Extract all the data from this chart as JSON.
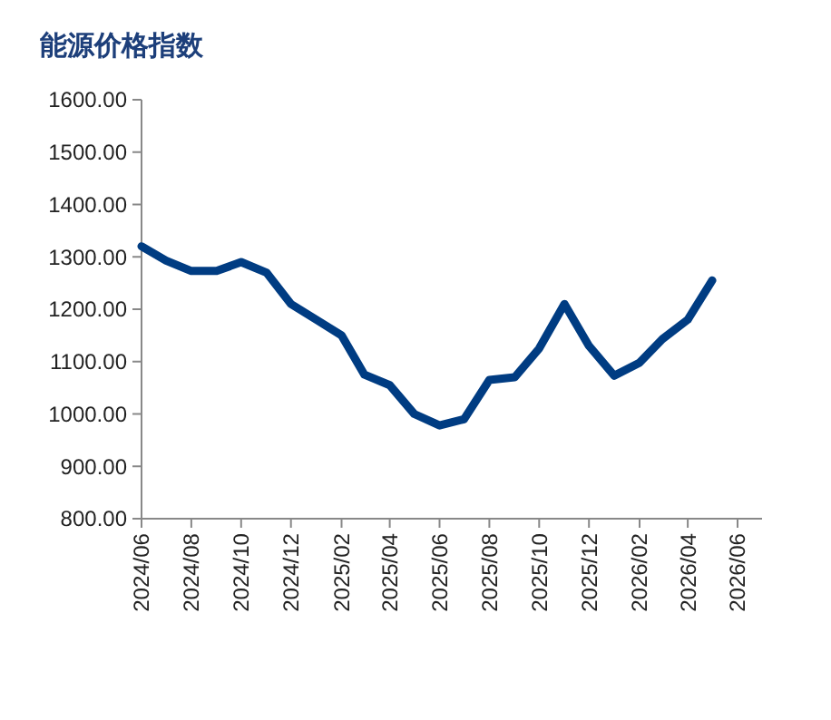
{
  "chart_data": {
    "type": "line",
    "title": "能源价格指数",
    "x": [
      "2024-06",
      "2024-07",
      "2024-08",
      "2024-09",
      "2024-10",
      "2024-11",
      "2024-12",
      "2025-01",
      "2025-02",
      "2025-03",
      "2025-04",
      "2025-05",
      "2025-06",
      "2025-07",
      "2025-08",
      "2025-09",
      "2025-10",
      "2025-11",
      "2025-12",
      "2026-01",
      "2026-02",
      "2026-03",
      "2026-04",
      "2026-05"
    ],
    "series": [
      {
        "color": "#003c82",
        "values": [
          1320,
          1293,
          1273,
          1273,
          1290,
          1270,
          1210,
          1180,
          1150,
          1075,
          1055,
          1000,
          978,
          990,
          1065,
          1070,
          1125,
          1210,
          1130,
          1073,
          1098,
          1143,
          1180,
          1255
        ]
      }
    ],
    "xlim": [
      "2024-06",
      "2026-07"
    ],
    "xticks": [
      {
        "value": "2024-06",
        "label": "2024/06"
      },
      {
        "value": "2024-08",
        "label": "2024/08"
      },
      {
        "value": "2024-10",
        "label": "2024/10"
      },
      {
        "value": "2024-12",
        "label": "2024/12"
      },
      {
        "value": "2025-02",
        "label": "2025/02"
      },
      {
        "value": "2025-04",
        "label": "2025/04"
      },
      {
        "value": "2025-06",
        "label": "2025/06"
      },
      {
        "value": "2025-08",
        "label": "2025/08"
      },
      {
        "value": "2025-10",
        "label": "2025/10"
      },
      {
        "value": "2025-12",
        "label": "2025/12"
      },
      {
        "value": "2026-02",
        "label": "2026/02"
      },
      {
        "value": "2026-04",
        "label": "2026/04"
      },
      {
        "value": "2026-06",
        "label": "2026/06"
      }
    ],
    "ylim": [
      800,
      1600
    ],
    "yticks": [
      {
        "value": 800,
        "label": "800.00"
      },
      {
        "value": 900,
        "label": "900.00"
      },
      {
        "value": 1000,
        "label": "1000.00"
      },
      {
        "value": 1100,
        "label": "1100.00"
      },
      {
        "value": 1200,
        "label": "1200.00"
      },
      {
        "value": 1300,
        "label": "1300.00"
      },
      {
        "value": 1400,
        "label": "1400.00"
      },
      {
        "value": 1500,
        "label": "1500.00"
      },
      {
        "value": 1600,
        "label": "1600.00"
      }
    ],
    "grid": false,
    "marker": "none",
    "line_style": "solid"
  }
}
